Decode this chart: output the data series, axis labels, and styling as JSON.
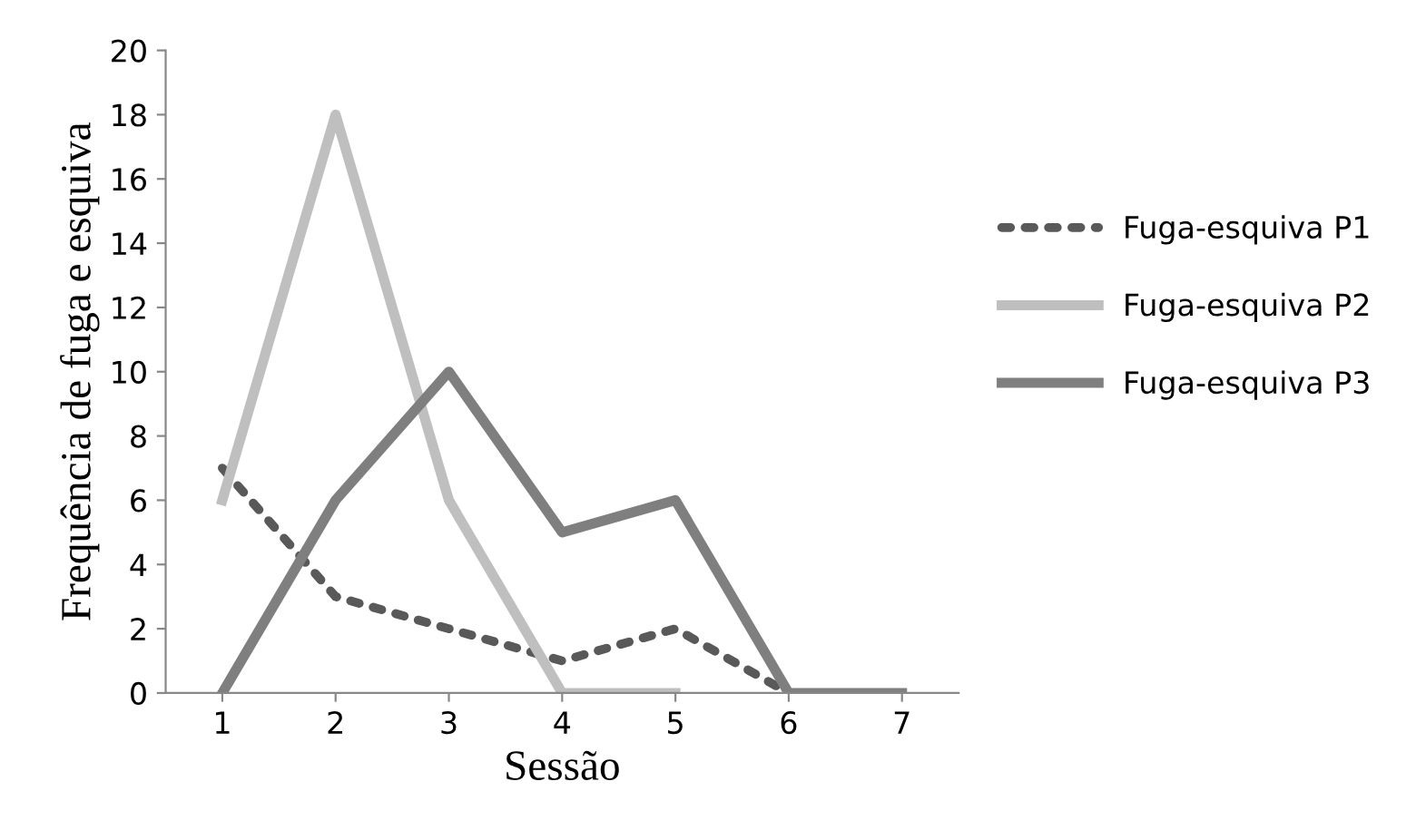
{
  "chart_data": {
    "type": "line",
    "xlabel": "Sessão",
    "ylabel": "Frequência de fuga e esquiva",
    "categories": [
      "1",
      "2",
      "3",
      "4",
      "5",
      "6",
      "7"
    ],
    "series": [
      {
        "name": "Fuga-esquiva P1",
        "color": "#595959",
        "line_style": "dotted",
        "values": [
          7,
          3,
          2,
          1,
          2,
          0,
          0
        ]
      },
      {
        "name": "Fuga-esquiva P2",
        "color": "#bfbfbf",
        "line_style": "solid",
        "values": [
          6,
          18,
          6,
          0,
          0,
          null,
          null
        ]
      },
      {
        "name": "Fuga-esquiva P3",
        "color": "#7f7f7f",
        "line_style": "solid",
        "values": [
          0,
          6,
          10,
          5,
          6,
          0,
          0
        ]
      }
    ],
    "ylim": [
      0,
      20
    ],
    "yticks": [
      0,
      2,
      4,
      6,
      8,
      10,
      12,
      14,
      16,
      18,
      20
    ],
    "grid": false,
    "legend": "right",
    "marker": "none"
  }
}
